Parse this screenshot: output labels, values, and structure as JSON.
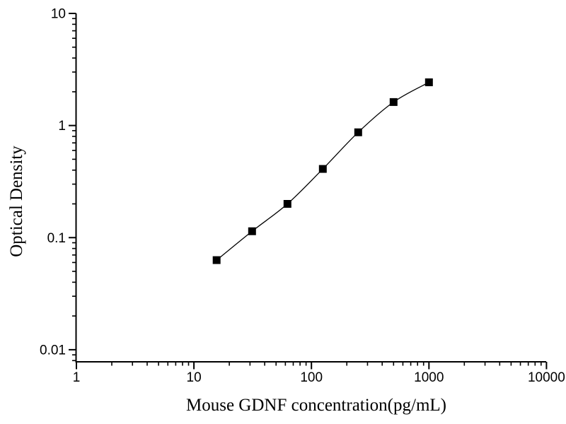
{
  "page": {
    "background": "#ffffff",
    "foreground": "#000000"
  },
  "chart_data": {
    "type": "scatter",
    "subtype": "line-scatter-standard-curve",
    "title": "",
    "xlabel": "Mouse GDNF concentration(pg/mL)",
    "ylabel": "Optical Density",
    "x_scale": "log",
    "y_scale": "log",
    "xlim": [
      1,
      10000
    ],
    "ylim": [
      0.0078,
      10
    ],
    "x_ticks": [
      1,
      10,
      100,
      1000,
      10000
    ],
    "x_tick_labels": [
      "1",
      "10",
      "100",
      "1000",
      "10000"
    ],
    "y_ticks": [
      0.01,
      0.1,
      1,
      10
    ],
    "y_tick_labels": [
      "0.01",
      "0.1",
      "1",
      "10"
    ],
    "grid": false,
    "legend": "none",
    "series": [
      {
        "name": "standard-curve",
        "marker": "filled-square",
        "color": "#000000",
        "x": [
          15.6,
          31.25,
          62.5,
          125,
          250,
          500,
          1000
        ],
        "y": [
          0.063,
          0.114,
          0.2,
          0.41,
          0.87,
          1.62,
          2.43
        ]
      }
    ]
  }
}
